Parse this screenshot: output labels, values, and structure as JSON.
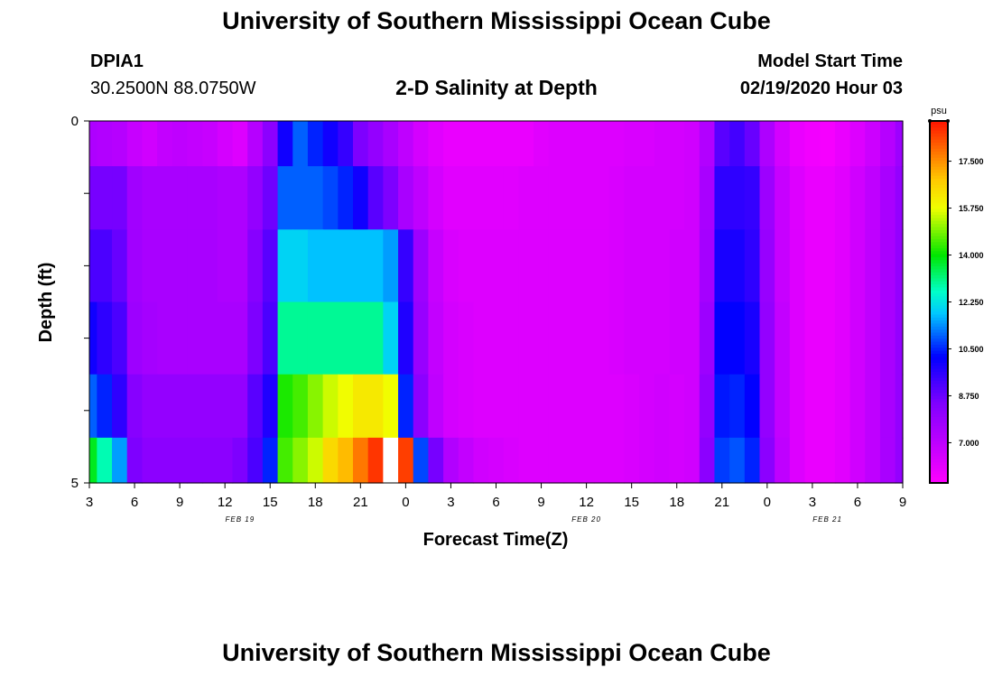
{
  "titles": {
    "top": "University of Southern Mississippi Ocean Cube",
    "bottom": "University of Southern Mississippi Ocean Cube"
  },
  "station": {
    "id": "DPIA1",
    "coords": "30.2500N 88.0750W"
  },
  "model": {
    "label": "Model Start Time",
    "time": "02/19/2020 Hour 03"
  },
  "chart_data": {
    "type": "heatmap",
    "title": "2-D Salinity at Depth",
    "xlabel": "Forecast Time(Z)",
    "ylabel": "Depth (ft)",
    "x_start": "02/19/2020 03Z",
    "x_tick_labels": [
      "3",
      "6",
      "9",
      "12",
      "15",
      "18",
      "21",
      "0",
      "3",
      "6",
      "9",
      "12",
      "15",
      "18",
      "21",
      "0",
      "3",
      "6",
      "9"
    ],
    "date_labels": [
      {
        "text": "FEB 19",
        "at_hour": 13
      },
      {
        "text": "FEB 20",
        "at_hour": 36
      },
      {
        "text": "FEB 21",
        "at_hour": 52
      }
    ],
    "hours": [
      3,
      4,
      5,
      6,
      7,
      8,
      9,
      10,
      11,
      12,
      13,
      14,
      15,
      16,
      17,
      18,
      19,
      20,
      21,
      22,
      23,
      24,
      25,
      26,
      27,
      28,
      29,
      30,
      31,
      32,
      33,
      34,
      35,
      36,
      37,
      38,
      39,
      40,
      41,
      42,
      43,
      44,
      45,
      46,
      47,
      48,
      49,
      50,
      51,
      52,
      53,
      54,
      55,
      56,
      57
    ],
    "y_ticks": [
      "0",
      "5"
    ],
    "ylim": [
      0,
      5
    ],
    "depth_levels": [
      0.25,
      1.0,
      2.0,
      3.0,
      4.0,
      4.75
    ],
    "colorbar": {
      "unit": "psu",
      "min": 5.5,
      "max": 19.0,
      "ticks": [
        "7.000",
        "8.750",
        "10.500",
        "12.250",
        "14.000",
        "15.750",
        "17.500"
      ],
      "tick_values": [
        7.0,
        8.75,
        10.5,
        12.25,
        14.0,
        15.75,
        17.5
      ]
    },
    "salinity": [
      [
        7.4,
        7.3,
        7.2,
        6.8,
        6.6,
        6.9,
        7.0,
        6.9,
        6.8,
        6.5,
        6.3,
        7.2,
        8.2,
        10.0,
        11.0,
        10.5,
        10.0,
        9.5,
        8.5,
        8.0,
        7.5,
        7.0,
        6.5,
        6.2,
        6.0,
        6.0,
        6.0,
        6.0,
        6.0,
        6.0,
        6.2,
        6.3,
        6.3,
        6.3,
        6.3,
        6.3,
        6.4,
        6.4,
        6.5,
        6.5,
        6.6,
        7.3,
        9.0,
        9.3,
        8.8,
        7.4,
        6.5,
        6.0,
        5.8,
        5.7,
        6.0,
        6.3,
        6.7,
        7.2,
        7.8
      ],
      [
        8.6,
        8.6,
        8.6,
        7.7,
        7.5,
        7.5,
        7.5,
        7.5,
        7.5,
        7.4,
        7.4,
        8.0,
        8.7,
        11.0,
        11.0,
        11.0,
        10.8,
        10.5,
        10.0,
        9.0,
        8.5,
        7.5,
        7.0,
        6.5,
        6.2,
        6.2,
        6.2,
        6.2,
        6.2,
        6.3,
        6.3,
        6.3,
        6.3,
        6.3,
        6.3,
        6.4,
        6.5,
        6.5,
        6.5,
        6.5,
        6.6,
        7.5,
        9.6,
        9.6,
        9.5,
        7.8,
        6.8,
        6.3,
        6.0,
        6.0,
        6.2,
        6.6,
        7.0,
        7.5,
        8.0
      ],
      [
        9.2,
        9.2,
        8.8,
        7.7,
        7.5,
        7.5,
        7.5,
        7.5,
        7.5,
        7.4,
        7.4,
        8.3,
        9.0,
        12.0,
        12.0,
        11.8,
        11.8,
        11.8,
        11.8,
        11.8,
        11.5,
        9.5,
        7.8,
        6.8,
        6.4,
        6.3,
        6.3,
        6.3,
        6.3,
        6.3,
        6.3,
        6.3,
        6.3,
        6.3,
        6.3,
        6.4,
        6.5,
        6.5,
        6.5,
        6.6,
        6.6,
        7.6,
        9.9,
        9.9,
        9.6,
        7.9,
        6.8,
        6.3,
        6.0,
        6.0,
        6.2,
        6.6,
        7.0,
        7.5,
        8.0
      ],
      [
        10.0,
        9.6,
        9.2,
        7.8,
        7.6,
        7.5,
        7.5,
        7.5,
        7.5,
        7.5,
        7.5,
        8.5,
        9.2,
        13.0,
        13.0,
        13.0,
        13.0,
        13.0,
        13.0,
        13.0,
        12.0,
        9.8,
        7.9,
        6.9,
        6.5,
        6.4,
        6.3,
        6.3,
        6.3,
        6.3,
        6.3,
        6.3,
        6.3,
        6.3,
        6.3,
        6.4,
        6.5,
        6.5,
        6.5,
        6.6,
        6.6,
        7.8,
        10.2,
        10.2,
        9.9,
        8.0,
        6.9,
        6.3,
        6.0,
        6.0,
        6.2,
        6.6,
        7.0,
        7.5,
        8.0
      ],
      [
        11.0,
        10.5,
        9.6,
        8.3,
        8.0,
        8.0,
        8.0,
        8.0,
        8.0,
        8.0,
        8.0,
        9.0,
        9.8,
        14.2,
        14.5,
        15.0,
        15.5,
        15.8,
        16.2,
        16.2,
        15.8,
        10.5,
        8.2,
        7.0,
        6.5,
        6.4,
        6.3,
        6.3,
        6.3,
        6.3,
        6.3,
        6.3,
        6.3,
        6.3,
        6.3,
        6.3,
        6.4,
        6.5,
        6.6,
        6.5,
        6.6,
        8.0,
        10.4,
        10.5,
        10.2,
        8.0,
        6.9,
        6.3,
        6.0,
        6.0,
        6.2,
        6.6,
        7.0,
        7.5,
        8.0
      ],
      [
        13.8,
        12.8,
        11.5,
        8.5,
        8.2,
        8.2,
        8.2,
        8.2,
        8.2,
        8.2,
        8.5,
        9.2,
        10.5,
        14.5,
        15.0,
        15.5,
        16.5,
        17.0,
        17.8,
        18.6,
        -1,
        18.5,
        10.8,
        8.6,
        7.3,
        6.9,
        6.6,
        6.5,
        6.4,
        6.3,
        6.3,
        6.3,
        6.3,
        6.3,
        6.3,
        6.3,
        6.4,
        6.5,
        6.6,
        6.5,
        6.6,
        8.2,
        10.7,
        10.9,
        10.5,
        8.2,
        7.0,
        6.3,
        6.0,
        6.0,
        6.2,
        6.6,
        7.0,
        7.5,
        8.0
      ]
    ]
  }
}
